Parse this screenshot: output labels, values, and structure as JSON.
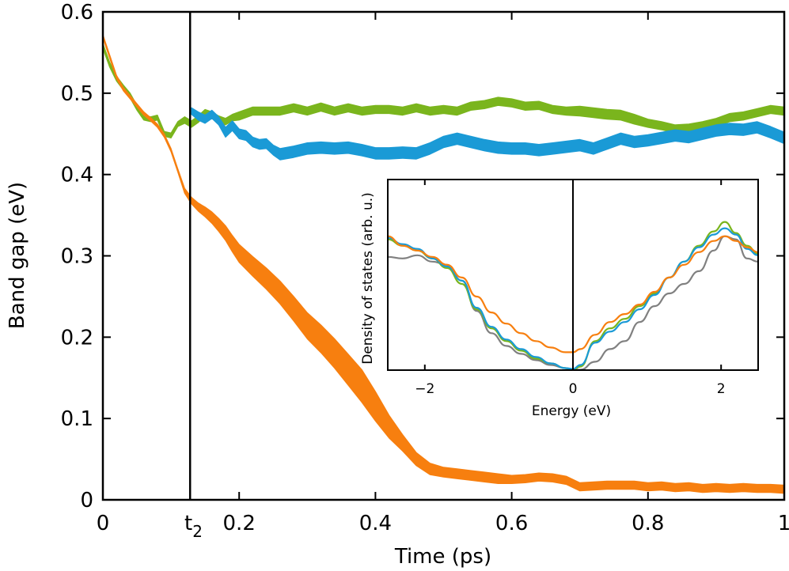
{
  "chart_data": [
    {
      "id": "main",
      "type": "line",
      "title": "",
      "xlabel": "Time (ps)",
      "ylabel": "Band gap (eV)",
      "xlim": [
        0,
        1
      ],
      "ylim": [
        0,
        0.6
      ],
      "xticks": [
        {
          "value": 0,
          "label": "0"
        },
        {
          "value": 0.2,
          "label": "0.2"
        },
        {
          "value": 0.4,
          "label": "0.4"
        },
        {
          "value": 0.6,
          "label": "0.6"
        },
        {
          "value": 0.8,
          "label": "0.8"
        },
        {
          "value": 1,
          "label": "1"
        }
      ],
      "yticks": [
        {
          "value": 0,
          "label": "0"
        },
        {
          "value": 0.1,
          "label": "0.1"
        },
        {
          "value": 0.2,
          "label": "0.2"
        },
        {
          "value": 0.3,
          "label": "0.3"
        },
        {
          "value": 0.4,
          "label": "0.4"
        },
        {
          "value": 0.5,
          "label": "0.5"
        },
        {
          "value": 0.6,
          "label": "0.6"
        }
      ],
      "annotation": {
        "text": "t",
        "subscript": "2",
        "x": 0.128
      },
      "series": [
        {
          "name": "green",
          "color": "#7ab51d",
          "x": [
            0,
            0.01,
            0.02,
            0.03,
            0.04,
            0.05,
            0.06,
            0.07,
            0.08,
            0.09,
            0.1,
            0.11,
            0.12,
            0.13,
            0.14,
            0.15,
            0.16,
            0.17,
            0.18,
            0.19,
            0.2,
            0.22,
            0.24,
            0.26,
            0.28,
            0.3,
            0.32,
            0.34,
            0.36,
            0.38,
            0.4,
            0.42,
            0.44,
            0.46,
            0.48,
            0.5,
            0.52,
            0.54,
            0.56,
            0.58,
            0.6,
            0.62,
            0.64,
            0.66,
            0.68,
            0.7,
            0.72,
            0.74,
            0.76,
            0.78,
            0.8,
            0.82,
            0.84,
            0.86,
            0.88,
            0.9,
            0.92,
            0.94,
            0.96,
            0.98,
            1.0
          ],
          "y": [
            0.558,
            0.535,
            0.518,
            0.507,
            0.497,
            0.482,
            0.47,
            0.468,
            0.47,
            0.45,
            0.448,
            0.462,
            0.467,
            0.462,
            0.468,
            0.476,
            0.473,
            0.468,
            0.465,
            0.47,
            0.472,
            0.478,
            0.478,
            0.478,
            0.482,
            0.478,
            0.483,
            0.478,
            0.482,
            0.478,
            0.48,
            0.48,
            0.478,
            0.482,
            0.478,
            0.48,
            0.478,
            0.484,
            0.486,
            0.49,
            0.488,
            0.484,
            0.485,
            0.48,
            0.478,
            0.478,
            0.476,
            0.474,
            0.473,
            0.468,
            0.463,
            0.46,
            0.456,
            0.457,
            0.46,
            0.464,
            0.47,
            0.472,
            0.476,
            0.48,
            0.478
          ],
          "band": [
            0.003,
            0.003,
            0.003,
            0.003,
            0.003,
            0.003,
            0.003,
            0.003,
            0.003,
            0.003,
            0.003,
            0.003,
            0.004,
            0.004,
            0.004,
            0.004,
            0.004,
            0.004,
            0.004,
            0.004,
            0.005,
            0.005,
            0.005,
            0.005,
            0.005,
            0.005,
            0.005,
            0.005,
            0.005,
            0.005,
            0.005,
            0.005,
            0.005,
            0.005,
            0.005,
            0.005,
            0.005,
            0.005,
            0.005,
            0.005,
            0.005,
            0.005,
            0.005,
            0.005,
            0.005,
            0.006,
            0.006,
            0.006,
            0.006,
            0.006,
            0.005,
            0.005,
            0.005,
            0.005,
            0.005,
            0.005,
            0.005,
            0.005,
            0.005,
            0.005,
            0.005
          ]
        },
        {
          "name": "blue",
          "color": "#1a9ad6",
          "x": [
            0.13,
            0.14,
            0.15,
            0.16,
            0.17,
            0.18,
            0.19,
            0.2,
            0.21,
            0.22,
            0.23,
            0.24,
            0.25,
            0.26,
            0.28,
            0.3,
            0.32,
            0.34,
            0.36,
            0.38,
            0.4,
            0.42,
            0.44,
            0.46,
            0.48,
            0.5,
            0.52,
            0.54,
            0.56,
            0.58,
            0.6,
            0.62,
            0.64,
            0.66,
            0.68,
            0.7,
            0.72,
            0.74,
            0.76,
            0.78,
            0.8,
            0.82,
            0.84,
            0.86,
            0.88,
            0.9,
            0.92,
            0.94,
            0.96,
            0.98,
            1.0
          ],
          "y": [
            0.478,
            0.472,
            0.468,
            0.474,
            0.466,
            0.452,
            0.46,
            0.45,
            0.448,
            0.44,
            0.437,
            0.438,
            0.43,
            0.425,
            0.428,
            0.432,
            0.433,
            0.432,
            0.433,
            0.43,
            0.426,
            0.426,
            0.427,
            0.426,
            0.432,
            0.44,
            0.444,
            0.44,
            0.436,
            0.433,
            0.432,
            0.432,
            0.43,
            0.432,
            0.434,
            0.436,
            0.432,
            0.438,
            0.444,
            0.44,
            0.442,
            0.445,
            0.448,
            0.446,
            0.45,
            0.454,
            0.456,
            0.455,
            0.458,
            0.452,
            0.445
          ],
          "band": [
            0.004,
            0.005,
            0.005,
            0.005,
            0.005,
            0.006,
            0.006,
            0.006,
            0.006,
            0.006,
            0.006,
            0.006,
            0.006,
            0.007,
            0.007,
            0.007,
            0.007,
            0.007,
            0.007,
            0.007,
            0.007,
            0.007,
            0.007,
            0.007,
            0.007,
            0.007,
            0.007,
            0.007,
            0.007,
            0.007,
            0.007,
            0.007,
            0.007,
            0.007,
            0.007,
            0.007,
            0.007,
            0.007,
            0.007,
            0.007,
            0.007,
            0.007,
            0.007,
            0.007,
            0.007,
            0.007,
            0.007,
            0.007,
            0.007,
            0.007,
            0.007
          ]
        },
        {
          "name": "orange",
          "color": "#f77f0f",
          "x": [
            0,
            0.01,
            0.02,
            0.03,
            0.04,
            0.05,
            0.06,
            0.07,
            0.08,
            0.09,
            0.1,
            0.11,
            0.12,
            0.13,
            0.14,
            0.15,
            0.16,
            0.17,
            0.18,
            0.19,
            0.2,
            0.22,
            0.24,
            0.26,
            0.28,
            0.3,
            0.32,
            0.34,
            0.36,
            0.38,
            0.4,
            0.42,
            0.44,
            0.46,
            0.48,
            0.5,
            0.52,
            0.54,
            0.56,
            0.58,
            0.6,
            0.62,
            0.64,
            0.66,
            0.68,
            0.7,
            0.72,
            0.74,
            0.76,
            0.78,
            0.8,
            0.82,
            0.84,
            0.86,
            0.88,
            0.9,
            0.92,
            0.94,
            0.96,
            0.98,
            1.0
          ],
          "y": [
            0.57,
            0.545,
            0.52,
            0.505,
            0.495,
            0.485,
            0.475,
            0.468,
            0.46,
            0.448,
            0.43,
            0.405,
            0.38,
            0.368,
            0.36,
            0.354,
            0.347,
            0.338,
            0.328,
            0.315,
            0.303,
            0.287,
            0.272,
            0.255,
            0.235,
            0.214,
            0.198,
            0.18,
            0.16,
            0.14,
            0.115,
            0.09,
            0.07,
            0.05,
            0.038,
            0.034,
            0.032,
            0.03,
            0.028,
            0.026,
            0.025,
            0.026,
            0.028,
            0.027,
            0.024,
            0.016,
            0.017,
            0.018,
            0.018,
            0.018,
            0.016,
            0.017,
            0.015,
            0.016,
            0.014,
            0.015,
            0.014,
            0.015,
            0.014,
            0.014,
            0.013
          ],
          "band": [
            0.002,
            0.002,
            0.002,
            0.002,
            0.002,
            0.002,
            0.002,
            0.002,
            0.002,
            0.002,
            0.002,
            0.002,
            0.003,
            0.004,
            0.005,
            0.006,
            0.007,
            0.008,
            0.009,
            0.01,
            0.011,
            0.012,
            0.013,
            0.014,
            0.015,
            0.016,
            0.017,
            0.018,
            0.019,
            0.02,
            0.018,
            0.014,
            0.01,
            0.008,
            0.007,
            0.006,
            0.006,
            0.006,
            0.006,
            0.006,
            0.005,
            0.005,
            0.005,
            0.005,
            0.005,
            0.005,
            0.005,
            0.005,
            0.005,
            0.005,
            0.005,
            0.005,
            0.005,
            0.005,
            0.005,
            0.005,
            0.005,
            0.005,
            0.005,
            0.005,
            0.005
          ]
        }
      ]
    },
    {
      "id": "inset",
      "type": "line",
      "title": "",
      "xlabel": "Energy (eV)",
      "ylabel": "Density of states (arb. u.)",
      "xlim": [
        -2.5,
        2.5
      ],
      "ylim": [
        0,
        1
      ],
      "xticks": [
        {
          "value": -2,
          "label": "−2"
        },
        {
          "value": 0,
          "label": "0"
        },
        {
          "value": 2,
          "label": "2"
        }
      ],
      "vline_x": 0,
      "series": [
        {
          "name": "gray",
          "color": "#808080",
          "x": [
            -2.5,
            -2.3,
            -2.1,
            -1.9,
            -1.7,
            -1.5,
            -1.3,
            -1.1,
            -0.9,
            -0.7,
            -0.5,
            -0.3,
            -0.1,
            0,
            0.1,
            0.3,
            0.5,
            0.7,
            0.9,
            1.1,
            1.3,
            1.5,
            1.7,
            1.9,
            2.05,
            2.2,
            2.35,
            2.5
          ],
          "y": [
            0.71,
            0.7,
            0.72,
            0.68,
            0.66,
            0.56,
            0.37,
            0.23,
            0.15,
            0.1,
            0.06,
            0.03,
            0.01,
            0.0,
            0.0,
            0.05,
            0.13,
            0.18,
            0.3,
            0.4,
            0.48,
            0.54,
            0.62,
            0.75,
            0.84,
            0.82,
            0.7,
            0.68
          ]
        },
        {
          "name": "green",
          "color": "#7ab51d",
          "x": [
            -2.5,
            -2.3,
            -2.1,
            -1.9,
            -1.7,
            -1.5,
            -1.3,
            -1.1,
            -0.9,
            -0.7,
            -0.5,
            -0.3,
            -0.1,
            0,
            0.1,
            0.3,
            0.5,
            0.7,
            0.9,
            1.1,
            1.3,
            1.5,
            1.7,
            1.9,
            2.05,
            2.2,
            2.35,
            2.5
          ],
          "y": [
            0.82,
            0.78,
            0.75,
            0.7,
            0.64,
            0.54,
            0.38,
            0.26,
            0.18,
            0.12,
            0.07,
            0.04,
            0.01,
            0.0,
            0.02,
            0.18,
            0.26,
            0.32,
            0.4,
            0.48,
            0.58,
            0.68,
            0.78,
            0.87,
            0.93,
            0.86,
            0.78,
            0.73
          ]
        },
        {
          "name": "blue",
          "color": "#1a9ad6",
          "x": [
            -2.5,
            -2.3,
            -2.1,
            -1.9,
            -1.7,
            -1.5,
            -1.3,
            -1.1,
            -0.9,
            -0.7,
            -0.5,
            -0.3,
            -0.1,
            0,
            0.1,
            0.3,
            0.5,
            0.7,
            0.9,
            1.1,
            1.3,
            1.5,
            1.7,
            1.9,
            2.05,
            2.2,
            2.35,
            2.5
          ],
          "y": [
            0.83,
            0.79,
            0.76,
            0.7,
            0.65,
            0.56,
            0.39,
            0.27,
            0.19,
            0.13,
            0.08,
            0.04,
            0.01,
            0.005,
            0.03,
            0.17,
            0.24,
            0.3,
            0.38,
            0.47,
            0.58,
            0.68,
            0.77,
            0.85,
            0.89,
            0.85,
            0.76,
            0.72
          ]
        },
        {
          "name": "orange",
          "color": "#f77f0f",
          "x": [
            -2.5,
            -2.3,
            -2.1,
            -1.9,
            -1.7,
            -1.5,
            -1.3,
            -1.1,
            -0.9,
            -0.7,
            -0.5,
            -0.3,
            -0.1,
            0,
            0.1,
            0.3,
            0.5,
            0.7,
            0.9,
            1.1,
            1.3,
            1.5,
            1.7,
            1.9,
            2.05,
            2.2,
            2.35,
            2.5
          ],
          "y": [
            0.84,
            0.78,
            0.75,
            0.71,
            0.66,
            0.58,
            0.46,
            0.36,
            0.29,
            0.23,
            0.18,
            0.14,
            0.11,
            0.11,
            0.13,
            0.22,
            0.3,
            0.35,
            0.41,
            0.49,
            0.58,
            0.66,
            0.74,
            0.81,
            0.84,
            0.81,
            0.77,
            0.74
          ]
        }
      ]
    }
  ]
}
